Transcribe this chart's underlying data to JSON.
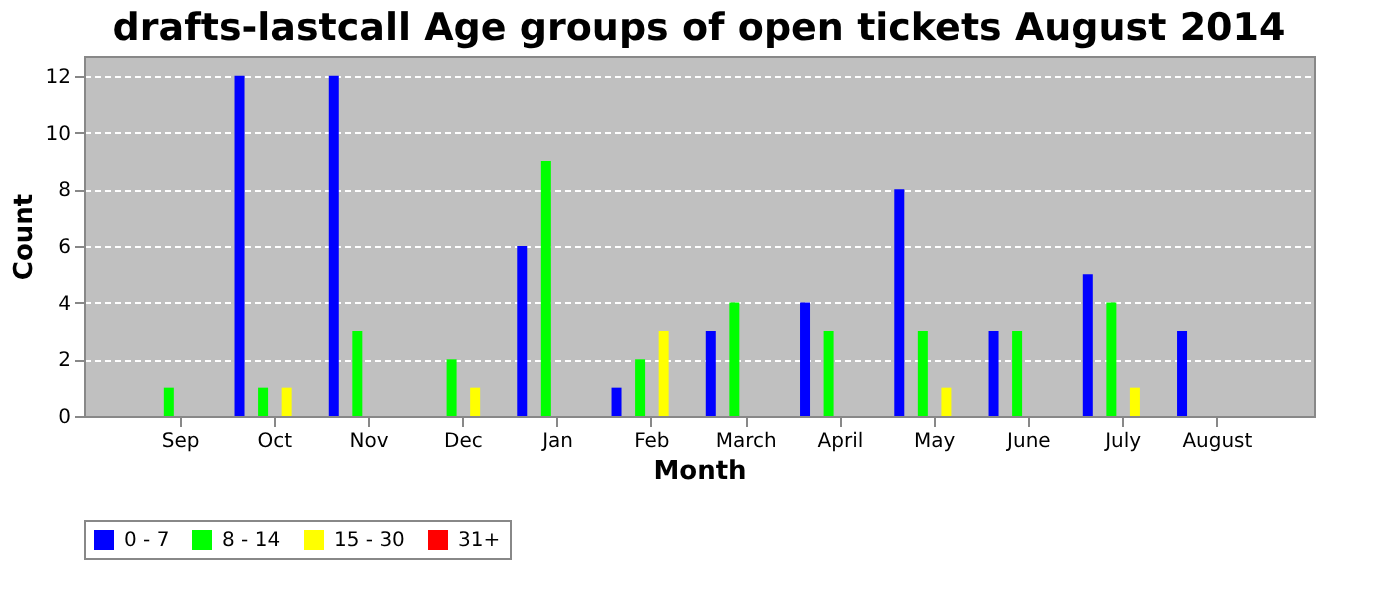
{
  "chart_data": {
    "type": "bar",
    "title": "drafts-lastcall Age groups of open tickets August 2014",
    "xlabel": "Month",
    "ylabel": "Count",
    "categories": [
      "Sep",
      "Oct",
      "Nov",
      "Dec",
      "Jan",
      "Feb",
      "March",
      "April",
      "May",
      "June",
      "July",
      "August"
    ],
    "series": [
      {
        "name": "0 - 7",
        "color": "#0000ff",
        "values": [
          0,
          12,
          12,
          0,
          6,
          1,
          3,
          4,
          8,
          3,
          5,
          3
        ]
      },
      {
        "name": "8 - 14",
        "color": "#00ff00",
        "values": [
          1,
          1,
          3,
          2,
          9,
          2,
          4,
          3,
          3,
          3,
          4,
          0
        ]
      },
      {
        "name": "15 - 30",
        "color": "#ffff00",
        "values": [
          0,
          1,
          0,
          1,
          0,
          3,
          0,
          0,
          1,
          0,
          1,
          0
        ]
      },
      {
        "name": "31+",
        "color": "#ff0000",
        "values": [
          0,
          0,
          0,
          0,
          0,
          0,
          0,
          0,
          0,
          0,
          0,
          0
        ]
      }
    ],
    "ylim": [
      0,
      12.7
    ],
    "yticks": [
      0,
      2,
      4,
      6,
      8,
      10,
      12
    ],
    "grid": "y",
    "legend": "bottom"
  }
}
